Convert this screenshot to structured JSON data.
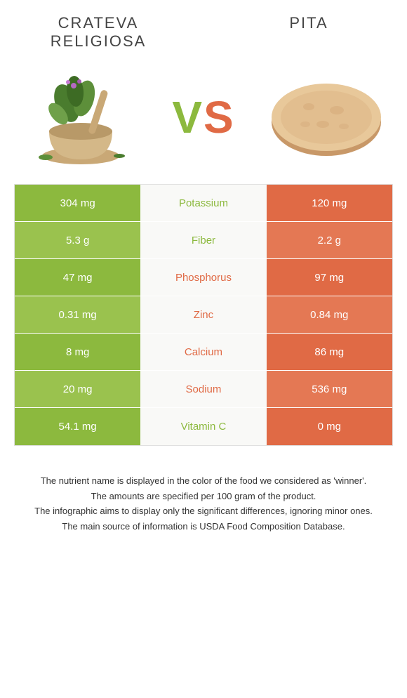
{
  "header": {
    "left_title": "Crateva religiosa",
    "right_title": "Pita"
  },
  "vs": {
    "v": "V",
    "s": "S"
  },
  "colors": {
    "left": "#8cb93e",
    "left_alt": "#9ac24e",
    "right": "#e06a45",
    "right_alt": "#e47854",
    "mid_bg": "#f9f9f7"
  },
  "rows": [
    {
      "left": "304 mg",
      "label": "Potassium",
      "right": "120 mg",
      "winner": "left"
    },
    {
      "left": "5.3 g",
      "label": "Fiber",
      "right": "2.2 g",
      "winner": "left"
    },
    {
      "left": "47 mg",
      "label": "Phosphorus",
      "right": "97 mg",
      "winner": "right"
    },
    {
      "left": "0.31 mg",
      "label": "Zinc",
      "right": "0.84 mg",
      "winner": "right"
    },
    {
      "left": "8 mg",
      "label": "Calcium",
      "right": "86 mg",
      "winner": "right"
    },
    {
      "left": "20 mg",
      "label": "Sodium",
      "right": "536 mg",
      "winner": "right"
    },
    {
      "left": "54.1 mg",
      "label": "Vitamin C",
      "right": "0 mg",
      "winner": "left"
    }
  ],
  "footer": {
    "line1": "The nutrient name is displayed in the color of the food we considered as 'winner'.",
    "line2": "The amounts are specified per 100 gram of the product.",
    "line3": "The infographic aims to display only the significant differences, ignoring minor ones.",
    "line4": "The main source of information is USDA Food Composition Database."
  }
}
